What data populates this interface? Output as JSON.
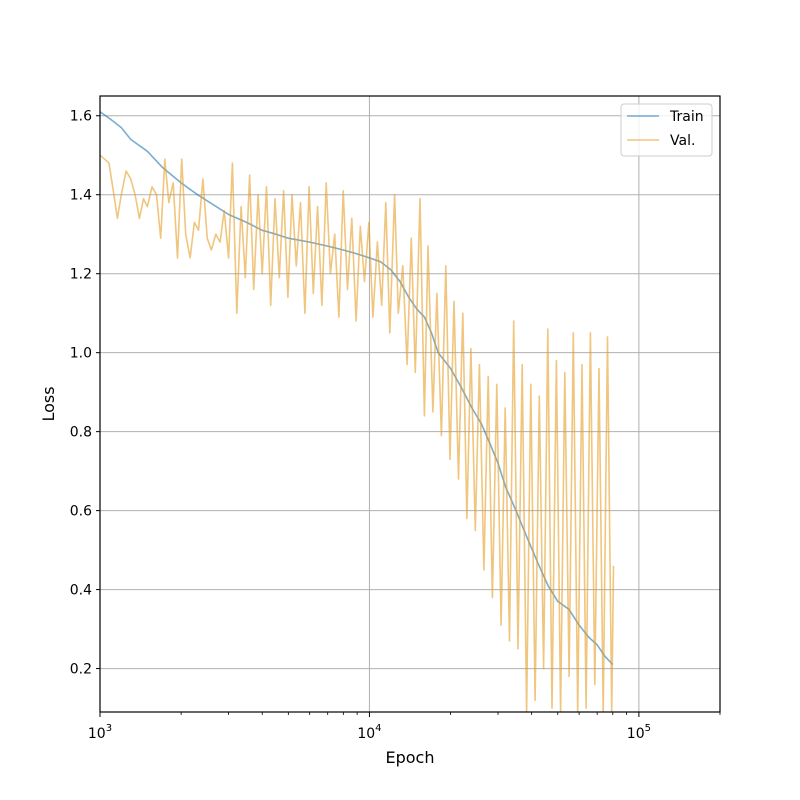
{
  "chart_data": {
    "type": "line",
    "title": "",
    "xlabel": "Epoch",
    "ylabel": "Loss",
    "xscale": "log",
    "xlim": [
      1000,
      200000
    ],
    "ylim": [
      0.09,
      1.65
    ],
    "grid": true,
    "legend_position": "top-right",
    "x_ticks": [
      {
        "value": 1000,
        "base": "10",
        "exp": "3"
      },
      {
        "value": 10000,
        "base": "10",
        "exp": "4"
      },
      {
        "value": 100000,
        "base": "10",
        "exp": "5"
      }
    ],
    "y_ticks": [
      {
        "value": 0.2,
        "label": "0.2"
      },
      {
        "value": 0.4,
        "label": "0.4"
      },
      {
        "value": 0.6,
        "label": "0.6"
      },
      {
        "value": 0.8,
        "label": "0.8"
      },
      {
        "value": 1.0,
        "label": "1.0"
      },
      {
        "value": 1.2,
        "label": "1.2"
      },
      {
        "value": 1.4,
        "label": "1.4"
      },
      {
        "value": 1.6,
        "label": "1.6"
      }
    ],
    "series": [
      {
        "name": "Train",
        "color": "#1f77b4",
        "x": [
          1000,
          1100,
          1200,
          1300,
          1500,
          1700,
          2000,
          2300,
          2700,
          3000,
          3500,
          4000,
          4500,
          5000,
          6000,
          7000,
          8000,
          9000,
          10000,
          11000,
          12000,
          13000,
          14000,
          15000,
          16000,
          17000,
          18000,
          20000,
          22000,
          24000,
          26000,
          28000,
          30000,
          32000,
          35000,
          38000,
          42000,
          46000,
          50000,
          55000,
          60000,
          65000,
          70000,
          75000,
          80000
        ],
        "y": [
          1.61,
          1.59,
          1.57,
          1.54,
          1.51,
          1.47,
          1.43,
          1.4,
          1.37,
          1.35,
          1.33,
          1.31,
          1.3,
          1.29,
          1.28,
          1.27,
          1.26,
          1.25,
          1.24,
          1.23,
          1.21,
          1.18,
          1.14,
          1.11,
          1.09,
          1.05,
          1.0,
          0.96,
          0.91,
          0.86,
          0.82,
          0.77,
          0.72,
          0.66,
          0.6,
          0.54,
          0.47,
          0.41,
          0.37,
          0.35,
          0.31,
          0.28,
          0.26,
          0.23,
          0.21
        ]
      },
      {
        "name": "Val.",
        "color": "#e69f28",
        "x": [
          1000,
          1040,
          1080,
          1120,
          1160,
          1200,
          1250,
          1300,
          1350,
          1400,
          1450,
          1500,
          1560,
          1620,
          1680,
          1740,
          1800,
          1870,
          1940,
          2010,
          2080,
          2160,
          2240,
          2320,
          2410,
          2500,
          2590,
          2690,
          2790,
          2890,
          3000,
          3100,
          3220,
          3340,
          3460,
          3590,
          3720,
          3860,
          4000,
          4150,
          4300,
          4460,
          4630,
          4800,
          4980,
          5160,
          5350,
          5550,
          5760,
          5970,
          6190,
          6420,
          6660,
          6910,
          7160,
          7430,
          7700,
          7990,
          8290,
          8600,
          8920,
          9250,
          9590,
          9950,
          10300,
          10700,
          11100,
          11500,
          11900,
          12400,
          12800,
          13300,
          13800,
          14300,
          14800,
          15400,
          16000,
          16500,
          17200,
          17800,
          18500,
          19200,
          19900,
          20600,
          21400,
          22200,
          23000,
          23800,
          24700,
          25600,
          26600,
          27600,
          28600,
          29700,
          30800,
          31900,
          33100,
          34300,
          35600,
          36900,
          38300,
          39700,
          41200,
          42700,
          44300,
          45900,
          47600,
          49400,
          51200,
          53100,
          55100,
          57100,
          59300,
          61500,
          63700,
          66100,
          68600,
          71100,
          73700,
          76500,
          79300,
          80500
        ],
        "y": [
          1.5,
          1.49,
          1.48,
          1.41,
          1.34,
          1.4,
          1.46,
          1.44,
          1.4,
          1.34,
          1.39,
          1.37,
          1.42,
          1.4,
          1.29,
          1.49,
          1.38,
          1.43,
          1.24,
          1.49,
          1.3,
          1.24,
          1.33,
          1.31,
          1.44,
          1.29,
          1.26,
          1.3,
          1.28,
          1.36,
          1.24,
          1.48,
          1.1,
          1.37,
          1.19,
          1.45,
          1.16,
          1.4,
          1.2,
          1.42,
          1.12,
          1.39,
          1.19,
          1.41,
          1.14,
          1.4,
          1.22,
          1.38,
          1.1,
          1.42,
          1.15,
          1.37,
          1.12,
          1.43,
          1.2,
          1.3,
          1.09,
          1.41,
          1.16,
          1.34,
          1.08,
          1.32,
          1.18,
          1.33,
          1.09,
          1.28,
          1.12,
          1.38,
          1.05,
          1.4,
          1.1,
          1.22,
          0.97,
          1.29,
          0.95,
          1.39,
          0.84,
          1.27,
          0.85,
          1.15,
          0.79,
          1.22,
          0.73,
          1.13,
          0.68,
          1.1,
          0.58,
          1.01,
          0.55,
          0.97,
          0.45,
          0.94,
          0.38,
          0.92,
          0.31,
          0.86,
          0.27,
          1.08,
          0.25,
          0.97,
          0.09,
          0.92,
          0.12,
          0.89,
          0.2,
          1.06,
          0.1,
          0.98,
          0.09,
          0.95,
          0.18,
          1.05,
          0.09,
          0.97,
          0.1,
          1.05,
          0.16,
          0.96,
          0.09,
          1.04,
          0.09,
          0.46
        ]
      }
    ]
  }
}
